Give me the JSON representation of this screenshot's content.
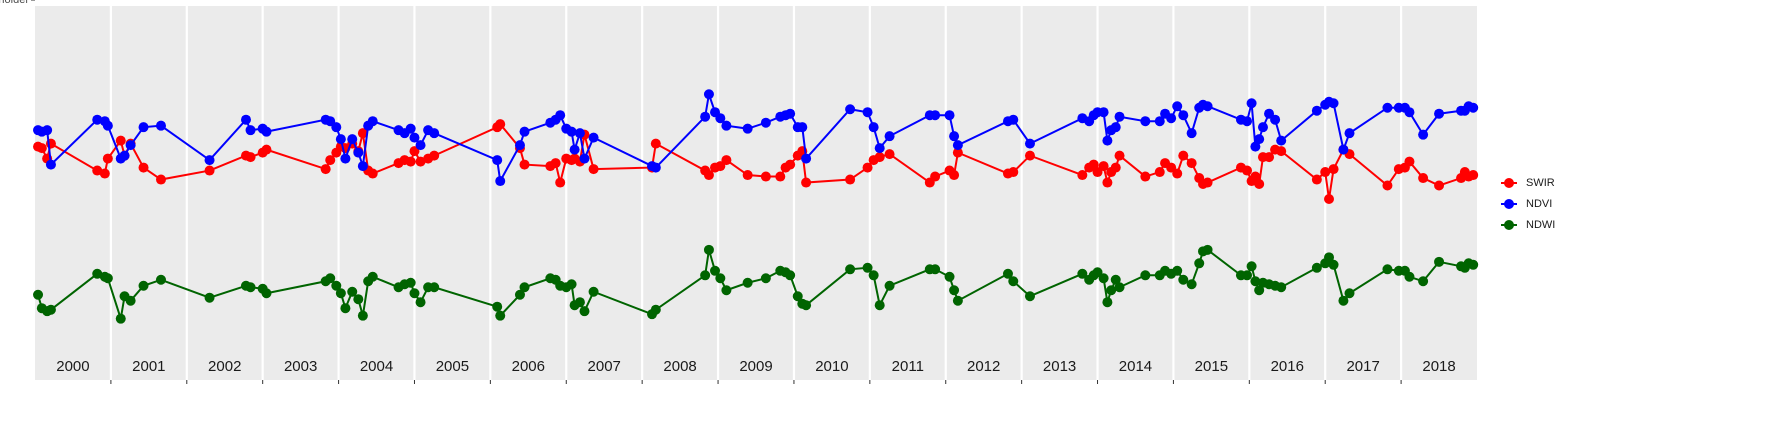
{
  "chart_data": {
    "type": "line",
    "x": [
      2000.04,
      2000.09,
      2000.16,
      2000.21,
      2000.82,
      2000.92,
      2000.96,
      2001.13,
      2001.18,
      2001.26,
      2001.43,
      2001.66,
      2002.3,
      2002.78,
      2002.84,
      2003.0,
      2003.05,
      2003.83,
      2003.89,
      2003.97,
      2004.03,
      2004.09,
      2004.18,
      2004.26,
      2004.32,
      2004.39,
      2004.45,
      2004.79,
      2004.87,
      2004.95,
      2005.0,
      2005.08,
      2005.18,
      2005.26,
      2006.09,
      2006.13,
      2006.39,
      2006.45,
      2006.79,
      2006.86,
      2006.92,
      2007.0,
      2007.07,
      2007.11,
      2007.18,
      2007.24,
      2007.36,
      2008.13,
      2008.18,
      2008.83,
      2008.88,
      2008.96,
      2009.03,
      2009.11,
      2009.39,
      2009.63,
      2009.82,
      2009.89,
      2009.95,
      2010.05,
      2010.11,
      2010.16,
      2010.74,
      2010.97,
      2011.05,
      2011.13,
      2011.26,
      2011.79,
      2011.86,
      2012.05,
      2012.11,
      2012.16,
      2012.82,
      2012.89,
      2013.11,
      2013.8,
      2013.89,
      2013.95,
      2014.0,
      2014.08,
      2014.13,
      2014.18,
      2014.24,
      2014.29,
      2014.63,
      2014.82,
      2014.89,
      2014.97,
      2015.05,
      2015.13,
      2015.24,
      2015.34,
      2015.39,
      2015.45,
      2015.89,
      2015.97,
      2016.03,
      2016.08,
      2016.13,
      2016.18,
      2016.26,
      2016.34,
      2016.42,
      2016.89,
      2017.0,
      2017.05,
      2017.11,
      2017.24,
      2017.32,
      2017.82,
      2017.97,
      2018.05,
      2018.11,
      2018.29,
      2018.5,
      2018.79,
      2018.84,
      2018.89,
      2018.95
    ],
    "series": [
      {
        "name": "SWIR",
        "color": "#ff0000",
        "values": [
          1.53,
          1.525,
          1.49,
          1.54,
          1.45,
          1.44,
          1.49,
          1.55,
          1.5,
          1.54,
          1.46,
          1.42,
          1.45,
          1.5,
          1.495,
          1.51,
          1.52,
          1.455,
          1.485,
          1.51,
          1.53,
          1.525,
          1.54,
          1.515,
          1.575,
          1.45,
          1.44,
          1.475,
          1.485,
          1.48,
          1.515,
          1.48,
          1.49,
          1.5,
          1.595,
          1.605,
          1.525,
          1.47,
          1.465,
          1.475,
          1.41,
          1.49,
          1.485,
          1.49,
          1.48,
          1.57,
          1.455,
          1.46,
          1.54,
          1.45,
          1.435,
          1.46,
          1.465,
          1.485,
          1.435,
          1.43,
          1.43,
          1.46,
          1.47,
          1.5,
          1.515,
          1.41,
          1.42,
          1.46,
          1.485,
          1.495,
          1.505,
          1.41,
          1.43,
          1.45,
          1.435,
          1.51,
          1.44,
          1.445,
          1.5,
          1.435,
          1.46,
          1.47,
          1.445,
          1.465,
          1.41,
          1.445,
          1.46,
          1.5,
          1.43,
          1.445,
          1.475,
          1.46,
          1.44,
          1.5,
          1.475,
          1.425,
          1.405,
          1.41,
          1.46,
          1.45,
          1.415,
          1.43,
          1.405,
          1.495,
          1.495,
          1.52,
          1.515,
          1.42,
          1.445,
          1.355,
          1.455,
          1.52,
          1.505,
          1.4,
          1.455,
          1.46,
          1.48,
          1.425,
          1.4,
          1.425,
          1.445,
          1.43,
          1.435
        ]
      },
      {
        "name": "NDVI",
        "color": "#0000ff",
        "values": [
          1.585,
          1.58,
          1.585,
          1.47,
          1.62,
          1.615,
          1.6,
          1.49,
          1.5,
          1.535,
          1.595,
          1.6,
          1.485,
          1.62,
          1.585,
          1.59,
          1.58,
          1.62,
          1.615,
          1.595,
          1.555,
          1.49,
          1.555,
          1.51,
          1.465,
          1.6,
          1.615,
          1.585,
          1.575,
          1.59,
          1.56,
          1.535,
          1.585,
          1.575,
          1.485,
          1.415,
          1.535,
          1.58,
          1.61,
          1.62,
          1.635,
          1.59,
          1.58,
          1.52,
          1.575,
          1.49,
          1.56,
          1.465,
          1.46,
          1.63,
          1.705,
          1.645,
          1.625,
          1.6,
          1.59,
          1.61,
          1.63,
          1.635,
          1.64,
          1.595,
          1.595,
          1.49,
          1.655,
          1.645,
          1.595,
          1.525,
          1.565,
          1.635,
          1.635,
          1.635,
          1.565,
          1.535,
          1.615,
          1.62,
          1.54,
          1.625,
          1.615,
          1.635,
          1.645,
          1.645,
          1.55,
          1.585,
          1.595,
          1.63,
          1.615,
          1.615,
          1.64,
          1.625,
          1.665,
          1.635,
          1.575,
          1.66,
          1.67,
          1.665,
          1.62,
          1.615,
          1.675,
          1.53,
          1.555,
          1.595,
          1.64,
          1.62,
          1.55,
          1.65,
          1.67,
          1.68,
          1.675,
          1.52,
          1.575,
          1.66,
          1.66,
          1.66,
          1.645,
          1.57,
          1.64,
          1.65,
          1.65,
          1.665,
          1.66
        ]
      },
      {
        "name": "NDWI",
        "color": "#006400",
        "values": [
          1.035,
          0.99,
          0.98,
          0.985,
          1.105,
          1.095,
          1.09,
          0.955,
          1.03,
          1.015,
          1.065,
          1.085,
          1.025,
          1.065,
          1.06,
          1.055,
          1.04,
          1.08,
          1.09,
          1.065,
          1.04,
          0.99,
          1.045,
          1.02,
          0.965,
          1.08,
          1.095,
          1.06,
          1.07,
          1.075,
          1.04,
          1.01,
          1.06,
          1.06,
          0.995,
          0.965,
          1.035,
          1.06,
          1.09,
          1.085,
          1.065,
          1.06,
          1.07,
          1.0,
          1.01,
          0.98,
          1.045,
          0.97,
          0.985,
          1.1,
          1.185,
          1.115,
          1.09,
          1.05,
          1.075,
          1.09,
          1.115,
          1.11,
          1.1,
          1.03,
          1.005,
          1.0,
          1.12,
          1.125,
          1.1,
          1.0,
          1.065,
          1.12,
          1.12,
          1.095,
          1.05,
          1.015,
          1.105,
          1.08,
          1.03,
          1.105,
          1.085,
          1.1,
          1.11,
          1.09,
          1.01,
          1.05,
          1.085,
          1.06,
          1.1,
          1.1,
          1.115,
          1.105,
          1.115,
          1.085,
          1.07,
          1.14,
          1.18,
          1.185,
          1.1,
          1.1,
          1.13,
          1.08,
          1.05,
          1.075,
          1.07,
          1.065,
          1.06,
          1.125,
          1.14,
          1.16,
          1.135,
          1.015,
          1.04,
          1.12,
          1.115,
          1.115,
          1.095,
          1.08,
          1.145,
          1.13,
          1.125,
          1.14,
          1.135
        ]
      }
    ],
    "xlim": [
      2000,
      2019
    ],
    "xticks": [
      2001,
      2002,
      2003,
      2004,
      2005,
      2006,
      2007,
      2008,
      2009,
      2010,
      2011,
      2012,
      2013,
      2014,
      2015,
      2016,
      2017,
      2018
    ],
    "year_labels": [
      2000,
      2001,
      2002,
      2003,
      2004,
      2005,
      2006,
      2007,
      2008,
      2009,
      2010,
      2011,
      2012,
      2013,
      2014,
      2015,
      2016,
      2017,
      2018
    ],
    "ylim": [
      0.75,
      2.0
    ],
    "yticks": [
      "placeholder"
    ],
    "grid": true,
    "legend": "right"
  }
}
